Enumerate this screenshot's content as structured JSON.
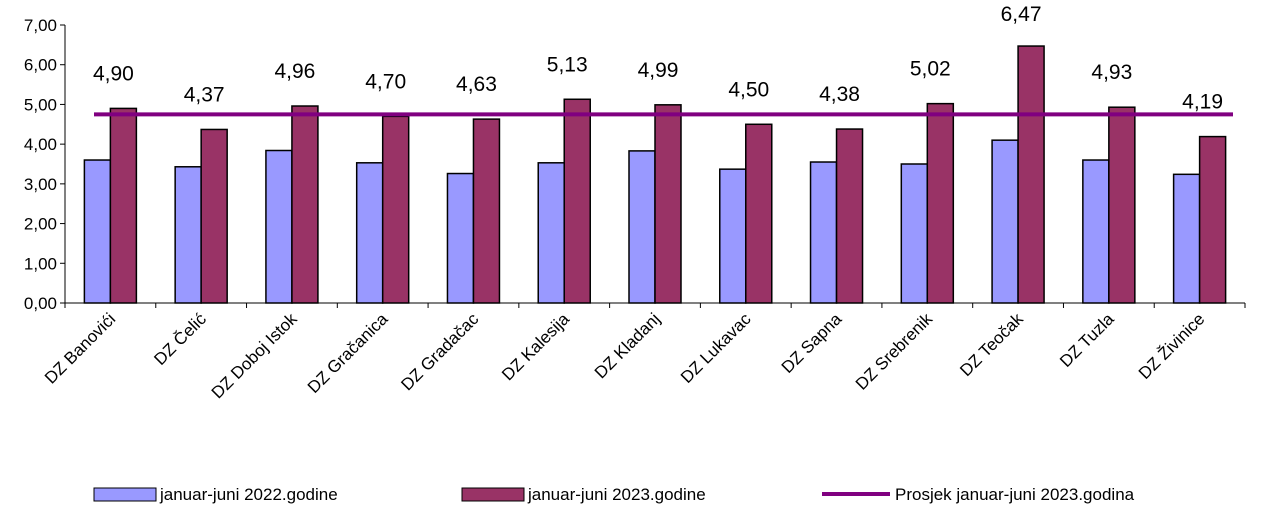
{
  "chart_data": {
    "type": "bar",
    "categories": [
      "DZ Banovići",
      "DZ Čelić",
      "DZ Doboj Istok",
      "DZ Gračanica",
      "DZ Gradačac",
      "DZ Kalesija",
      "DZ  Kladanj",
      "DZ Lukavac",
      "DZ Sapna",
      "DZ Srebrenik",
      "DZ Teočak",
      "DZ Tuzla",
      "DZ Živinice"
    ],
    "series": [
      {
        "name": "januar-juni 2022.godine",
        "color": "#9999ff",
        "values": [
          3.6,
          3.43,
          3.84,
          3.53,
          3.26,
          3.53,
          3.83,
          3.37,
          3.55,
          3.5,
          4.1,
          3.6,
          3.24
        ]
      },
      {
        "name": "januar-juni 2023.godine",
        "color": "#993366",
        "values": [
          4.9,
          4.37,
          4.96,
          4.7,
          4.63,
          5.13,
          4.99,
          4.5,
          4.38,
          5.02,
          6.47,
          4.93,
          4.19
        ],
        "data_labels": [
          "4,90",
          "4,37",
          "4,96",
          "4,70",
          "4,63",
          "5,13",
          "4,99",
          "4,50",
          "4,38",
          "5,02",
          "6,47",
          "4,93",
          "4,19"
        ]
      }
    ],
    "reference_line": {
      "name": "Prosjek januar-juni  2023.godina",
      "value": 4.75,
      "color": "#800080"
    },
    "ylim": [
      0,
      7
    ],
    "yticks": [
      0,
      1,
      2,
      3,
      4,
      5,
      6,
      7
    ],
    "ytick_labels": [
      "0,00",
      "1,00",
      "2,00",
      "3,00",
      "4,00",
      "5,00",
      "6,00",
      "7,00"
    ],
    "grid": false,
    "legend_position": "bottom"
  }
}
